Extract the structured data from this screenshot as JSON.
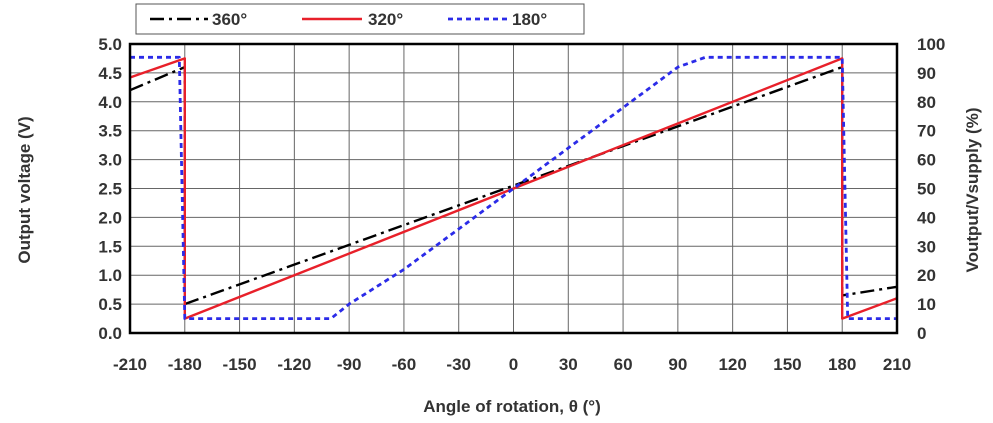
{
  "chart_data": {
    "type": "line",
    "xlabel": "Angle of rotation, θ (°)",
    "ylabel": "Output voltage (V)",
    "y2label": "Voutput/Vsupply (%)",
    "xlim": [
      -210,
      210
    ],
    "ylim": [
      0,
      5
    ],
    "y2lim": [
      0,
      100
    ],
    "x_ticks": [
      -210,
      -180,
      -150,
      -120,
      -90,
      -60,
      -30,
      0,
      30,
      60,
      90,
      120,
      150,
      180,
      210
    ],
    "y_ticks": [
      "0.0",
      "0.5",
      "1.0",
      "1.5",
      "2.0",
      "2.5",
      "3.0",
      "3.5",
      "4.0",
      "4.5",
      "5.0"
    ],
    "y2_ticks": [
      "0",
      "10",
      "20",
      "30",
      "40",
      "50",
      "60",
      "70",
      "80",
      "90",
      "100"
    ],
    "grid": true,
    "legend_position": "top-left-outside",
    "series": [
      {
        "name": "360°",
        "color": "#000000",
        "dash": "dashdot",
        "x": [
          -210,
          -180,
          -180,
          180,
          180,
          210
        ],
        "y": [
          4.2,
          4.6,
          0.5,
          4.6,
          0.65,
          0.8
        ]
      },
      {
        "name": "320°",
        "color": "#e8202a",
        "dash": "solid",
        "x": [
          -210,
          -180,
          -180,
          180,
          180,
          210
        ],
        "y": [
          4.42,
          4.75,
          0.25,
          4.75,
          0.25,
          0.6
        ]
      },
      {
        "name": "180°",
        "color": "#2b2be8",
        "dash": "dotted",
        "x": [
          -210,
          -183,
          -180,
          -100,
          -90,
          -60,
          -30,
          0,
          30,
          60,
          90,
          105,
          180,
          183,
          210
        ],
        "y": [
          4.77,
          4.77,
          0.25,
          0.25,
          0.5,
          1.1,
          1.8,
          2.5,
          3.2,
          3.9,
          4.6,
          4.77,
          4.77,
          0.25,
          0.25
        ]
      }
    ]
  }
}
